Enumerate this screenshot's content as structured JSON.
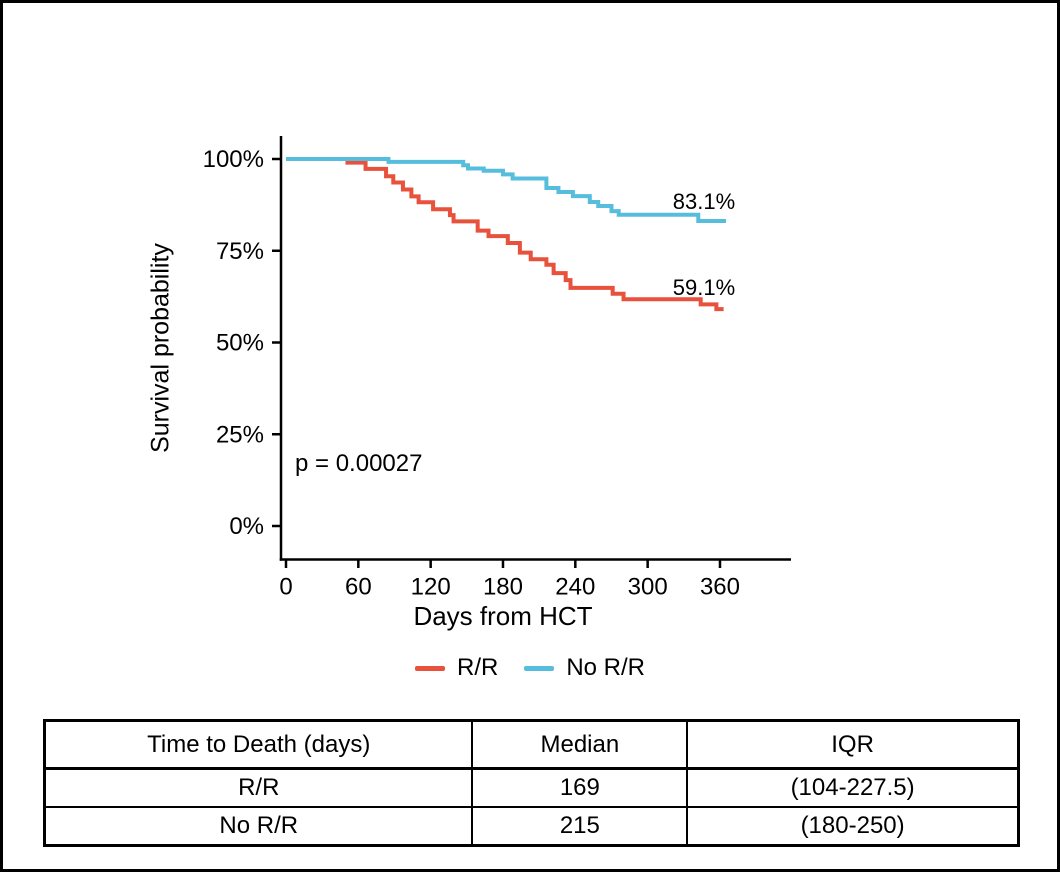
{
  "figure": {
    "p_value_label": "p = 0.00027"
  },
  "chart_data": {
    "type": "line",
    "subtype": "kaplan-meier-step",
    "title": "",
    "xlabel": "Days from HCT",
    "ylabel": "Survival probability",
    "xlim": [
      0,
      420
    ],
    "ylim": [
      0,
      100
    ],
    "grid": false,
    "legend_position": "bottom",
    "x_ticks": [
      0,
      60,
      120,
      180,
      240,
      300,
      360
    ],
    "x_tick_labels": [
      "0",
      "60",
      "120",
      "180",
      "240",
      "300",
      "360"
    ],
    "y_ticks": [
      0,
      25,
      50,
      75,
      100
    ],
    "y_tick_labels": [
      "0%",
      "25%",
      "50%",
      "75%",
      "100%"
    ],
    "p_label": "p = 0.00027",
    "annotations": [
      {
        "series": "No R/R",
        "text": "83.1%",
        "x_day": 346,
        "y_pct": 89
      },
      {
        "series": "R/R",
        "text": "59.1%",
        "x_day": 346,
        "y_pct": 66
      }
    ],
    "series": [
      {
        "name": "R/R",
        "color": "#e8513c",
        "end_label": "59.1%",
        "points": [
          [
            0,
            100
          ],
          [
            51,
            99
          ],
          [
            66,
            97.3
          ],
          [
            83,
            95.3
          ],
          [
            89,
            93.6
          ],
          [
            97,
            91.7
          ],
          [
            104,
            89.8
          ],
          [
            110,
            88.2
          ],
          [
            122,
            86.3
          ],
          [
            136,
            84.7
          ],
          [
            139,
            83.0
          ],
          [
            159,
            80.5
          ],
          [
            168,
            79.0
          ],
          [
            184,
            77.1
          ],
          [
            194,
            74.5
          ],
          [
            203,
            72.7
          ],
          [
            216,
            71.2
          ],
          [
            222,
            68.9
          ],
          [
            232,
            67.0
          ],
          [
            236,
            64.9
          ],
          [
            271,
            63.3
          ],
          [
            280,
            61.8
          ],
          [
            344,
            60.4
          ],
          [
            357,
            59.1
          ],
          [
            363,
            59.1
          ]
        ]
      },
      {
        "name": "No R/R",
        "color": "#56bedc",
        "end_label": "83.1%",
        "points": [
          [
            0,
            100
          ],
          [
            85,
            99.2
          ],
          [
            147,
            98.3
          ],
          [
            151,
            97.4
          ],
          [
            164,
            96.8
          ],
          [
            180,
            95.8
          ],
          [
            188,
            94.7
          ],
          [
            216,
            92.1
          ],
          [
            226,
            91.0
          ],
          [
            238,
            89.9
          ],
          [
            252,
            88.3
          ],
          [
            259,
            87.2
          ],
          [
            270,
            85.8
          ],
          [
            276,
            84.8
          ],
          [
            342,
            83.1
          ],
          [
            365,
            83.1
          ]
        ]
      }
    ]
  },
  "table": {
    "headers": [
      "Time to Death (days)",
      "Median",
      "IQR"
    ],
    "rows": [
      [
        "R/R",
        "169",
        "(104-227.5)"
      ],
      [
        "No R/R",
        "215",
        "(180-250)"
      ]
    ]
  }
}
